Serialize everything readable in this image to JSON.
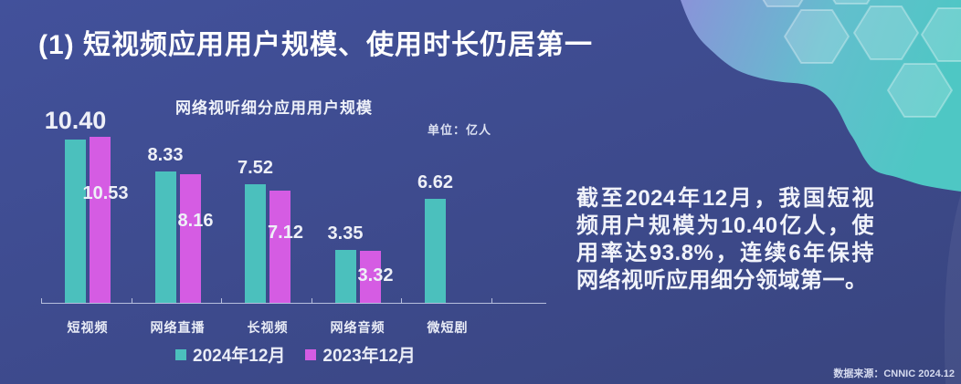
{
  "page": {
    "title": "(1) 短视频应用用户规模、使用时长仍居第一",
    "summary": "截至2024年12月，我国短视频用户规模为10.40亿人，使用率达93.8%，连续6年保持网络视听应用细分领域第一。",
    "source": "数据来源：CNNIC 2024.12"
  },
  "colors": {
    "background": "#3d4a8c",
    "series_2024": "#4bc0bd",
    "series_2023": "#d55ce3",
    "axis": "#cdd4ec",
    "text": "#f1f3fa",
    "corner_gradient_left": "#8a93d9",
    "corner_gradient_right": "#4ec7c4"
  },
  "chart_data": {
    "type": "bar",
    "title": "网络视听细分应用用户规模",
    "unit_label": "单位：亿人",
    "categories": [
      "短视频",
      "网络直播",
      "长视频",
      "网络音频",
      "微短剧"
    ],
    "series": [
      {
        "name": "2024年12月",
        "color": "#4bc0bd",
        "values": [
          10.4,
          8.33,
          7.52,
          3.35,
          6.62
        ],
        "labels": [
          "10.40",
          "8.33",
          "7.52",
          "3.35",
          "6.62"
        ]
      },
      {
        "name": "2023年12月",
        "color": "#d55ce3",
        "values": [
          10.53,
          8.16,
          7.12,
          3.32,
          null
        ],
        "labels": [
          "10.53",
          "8.16",
          "7.12",
          "3.32",
          null
        ]
      }
    ],
    "ylabel": "亿人",
    "ylim": [
      0,
      11
    ],
    "grid": false,
    "legend_position": "bottom",
    "value_labels_shown": true
  }
}
